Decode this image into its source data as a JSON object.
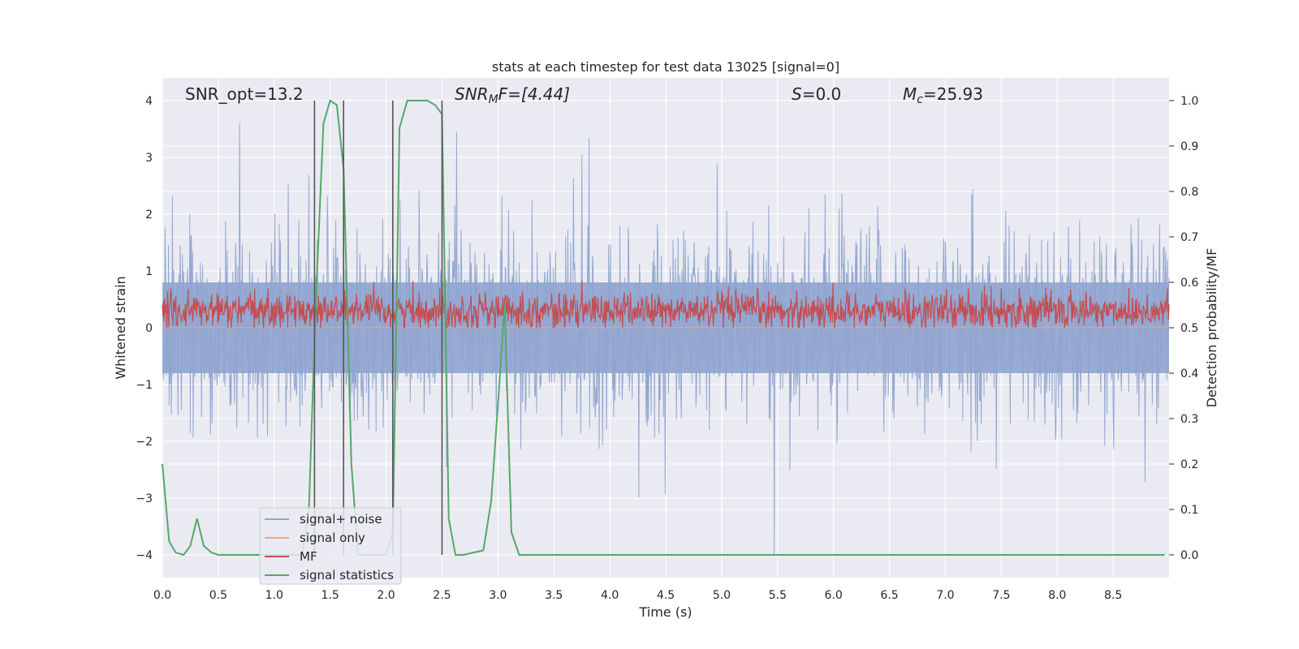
{
  "chart_data": {
    "type": "line",
    "title": "stats at each timestep for test data 13025 [signal=0]",
    "xlabel": "Time (s)",
    "ylabel": "Whitened strain",
    "ylabel_right": "Detection probability/MF",
    "xlim": [
      0,
      9.0
    ],
    "ylim": [
      -4.4,
      4.4
    ],
    "ylim_right": [
      -0.05,
      1.05
    ],
    "x_ticks": [
      "0.0",
      "0.5",
      "1.0",
      "1.5",
      "2.0",
      "2.5",
      "3.0",
      "3.5",
      "4.0",
      "4.5",
      "5.0",
      "5.5",
      "6.0",
      "6.5",
      "7.0",
      "7.5",
      "8.0",
      "8.5"
    ],
    "y_ticks": [
      "4",
      "3",
      "2",
      "1",
      "0",
      "−1",
      "−2",
      "−3",
      "−4"
    ],
    "y_ticks_right": [
      "1.0",
      "0.9",
      "0.8",
      "0.7",
      "0.6",
      "0.5",
      "0.4",
      "0.3",
      "0.2",
      "0.1",
      "0.0"
    ],
    "grid": true,
    "legend_position": "lower-left",
    "annotations": {
      "snr_opt": "SNR_opt=13.2",
      "snr_mf_base": "SNR",
      "snr_mf_sub": "M",
      "snr_mf_rest": "F=[4.44]",
      "s_italic": "S",
      "s_value": "=0.0",
      "mc_base": "M",
      "mc_sub": "c",
      "mc_value": "=25.93"
    },
    "vertical_lines": [
      1.36,
      1.62,
      2.06,
      2.5
    ],
    "series": [
      {
        "name": "signal+ noise",
        "color": "#8fa4cf",
        "axis": "left",
        "pattern": "noise",
        "amplitude": 1.6
      },
      {
        "name": "signal only",
        "color": "#e8a58a",
        "axis": "left",
        "pattern": "flat"
      },
      {
        "name": "MF",
        "color": "#c44e52",
        "axis": "left",
        "pattern": "noise",
        "amplitude": 0.35,
        "offset": 0.3
      },
      {
        "name": "signal statistics",
        "color": "#55a868",
        "axis": "right",
        "x": [
          0.0,
          0.06,
          0.12,
          0.19,
          0.25,
          0.31,
          0.37,
          0.44,
          0.5,
          0.56,
          1.25,
          1.31,
          1.37,
          1.44,
          1.5,
          1.56,
          1.62,
          1.69,
          1.75,
          1.81,
          2.0,
          2.06,
          2.12,
          2.19,
          2.25,
          2.37,
          2.44,
          2.5,
          2.56,
          2.62,
          2.69,
          2.87,
          2.94,
          3.0,
          3.06,
          3.12,
          3.19,
          8.96
        ],
        "y": [
          0.2,
          0.03,
          0.005,
          0.0,
          0.02,
          0.08,
          0.02,
          0.005,
          0.0,
          0.0,
          0.0,
          0.1,
          0.55,
          0.95,
          1.0,
          0.99,
          0.85,
          0.2,
          0.0,
          0.0,
          0.0,
          0.05,
          0.94,
          1.0,
          1.0,
          1.0,
          0.99,
          0.97,
          0.08,
          0.0,
          0.0,
          0.01,
          0.12,
          0.33,
          0.55,
          0.05,
          0.0,
          0.0
        ]
      }
    ]
  }
}
